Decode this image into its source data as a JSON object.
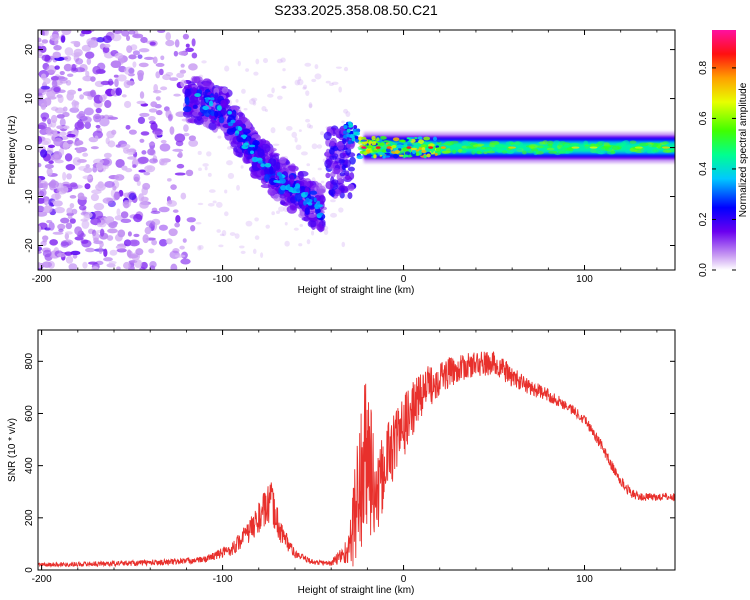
{
  "title": "S233.2025.358.08.50.C21",
  "chart_data": [
    {
      "type": "heatmap",
      "xlabel": "Height of straight line (km)",
      "ylabel": "Frequency (Hz)",
      "xlim": [
        -202,
        150
      ],
      "ylim": [
        -25,
        24
      ],
      "xticks": [
        -200,
        -100,
        0,
        100
      ],
      "yticks": [
        -20,
        -10,
        0,
        10,
        20
      ],
      "colorbar": {
        "label": "Normalized spectral amplitude",
        "range": [
          0,
          0.95
        ],
        "ticks": [
          0,
          0.2,
          0.4,
          0.6,
          0.8
        ]
      },
      "features": {
        "noise_cloud_x": [
          -202,
          -115
        ],
        "descending_arc": [
          [
            -120,
            10
          ],
          [
            -100,
            8
          ],
          [
            -85,
            0
          ],
          [
            -70,
            -6
          ],
          [
            -55,
            -10
          ],
          [
            -45,
            -13
          ]
        ],
        "steady_band_x": [
          -30,
          150
        ],
        "steady_band_freq": 0
      }
    },
    {
      "type": "line",
      "xlabel": "Height of straight line (km)",
      "ylabel": "SNR (10 * v/v)",
      "xlim": [
        -202,
        150
      ],
      "ylim": [
        0,
        920
      ],
      "xticks": [
        -200,
        -100,
        0,
        100
      ],
      "yticks": [
        0,
        200,
        400,
        600,
        800
      ],
      "color": "#e8302c",
      "envelope": {
        "x": [
          -202,
          -160,
          -130,
          -110,
          -95,
          -85,
          -78,
          -73,
          -68,
          -60,
          -50,
          -40,
          -30,
          -25,
          -22,
          -20,
          -18,
          -15,
          -10,
          0,
          10,
          20,
          30,
          40,
          50,
          55,
          60,
          70,
          80,
          90,
          100,
          110,
          115,
          120,
          125,
          130,
          140,
          150
        ],
        "y": [
          20,
          25,
          30,
          40,
          80,
          150,
          220,
          260,
          150,
          60,
          30,
          25,
          80,
          300,
          380,
          450,
          400,
          250,
          420,
          550,
          680,
          740,
          770,
          790,
          790,
          770,
          740,
          700,
          670,
          630,
          580,
          470,
          400,
          340,
          300,
          280,
          280,
          280
        ],
        "amplitude": [
          8,
          10,
          12,
          12,
          25,
          45,
          70,
          80,
          50,
          15,
          10,
          10,
          60,
          300,
          320,
          330,
          300,
          150,
          150,
          120,
          90,
          70,
          50,
          50,
          50,
          45,
          40,
          30,
          25,
          20,
          20,
          20,
          20,
          20,
          20,
          15,
          15,
          15
        ]
      }
    }
  ]
}
